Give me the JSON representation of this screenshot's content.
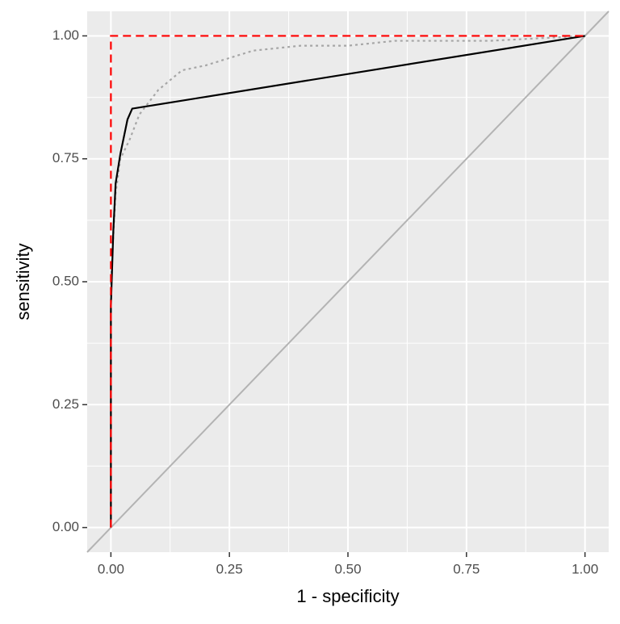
{
  "chart_data": {
    "type": "line",
    "x_label": "1 - specificity",
    "y_label": "sensitivity",
    "xlim": [
      -0.05,
      1.05
    ],
    "ylim": [
      -0.05,
      1.05
    ],
    "xticks": [
      {
        "value": 0,
        "label": "0.00"
      },
      {
        "value": 0.25,
        "label": "0.25"
      },
      {
        "value": 0.5,
        "label": "0.50"
      },
      {
        "value": 0.75,
        "label": "0.75"
      },
      {
        "value": 1,
        "label": "1.00"
      }
    ],
    "yticks": [
      {
        "value": 0,
        "label": "0.00"
      },
      {
        "value": 0.25,
        "label": "0.25"
      },
      {
        "value": 0.5,
        "label": "0.50"
      },
      {
        "value": 0.75,
        "label": "0.75"
      },
      {
        "value": 1,
        "label": "1.00"
      }
    ],
    "grid": true,
    "minor_grid": true,
    "diagonal": true,
    "diagonal_color": "#b3b3b3",
    "series": [
      {
        "color": "#a6a6a6",
        "dash": "3,4",
        "x": [
          0,
          0,
          0.01,
          0.02,
          0.04,
          0.06,
          0.1,
          0.15,
          0.2,
          0.3,
          0.4,
          0.5,
          0.6,
          0.8,
          1
        ],
        "values": [
          0,
          0.5,
          0.68,
          0.75,
          0.79,
          0.84,
          0.89,
          0.93,
          0.94,
          0.97,
          0.98,
          0.98,
          0.99,
          0.99,
          1
        ]
      },
      {
        "color": "#000000",
        "dash": "none",
        "x": [
          0,
          0,
          0.005,
          0.01,
          0.02,
          0.035,
          0.045,
          1
        ],
        "values": [
          0,
          0.45,
          0.6,
          0.7,
          0.76,
          0.83,
          0.852,
          1
        ]
      },
      {
        "color": "#ff0000",
        "dash": "10,6",
        "x": [
          0,
          0,
          1
        ],
        "values": [
          0,
          1,
          1
        ]
      }
    ]
  }
}
